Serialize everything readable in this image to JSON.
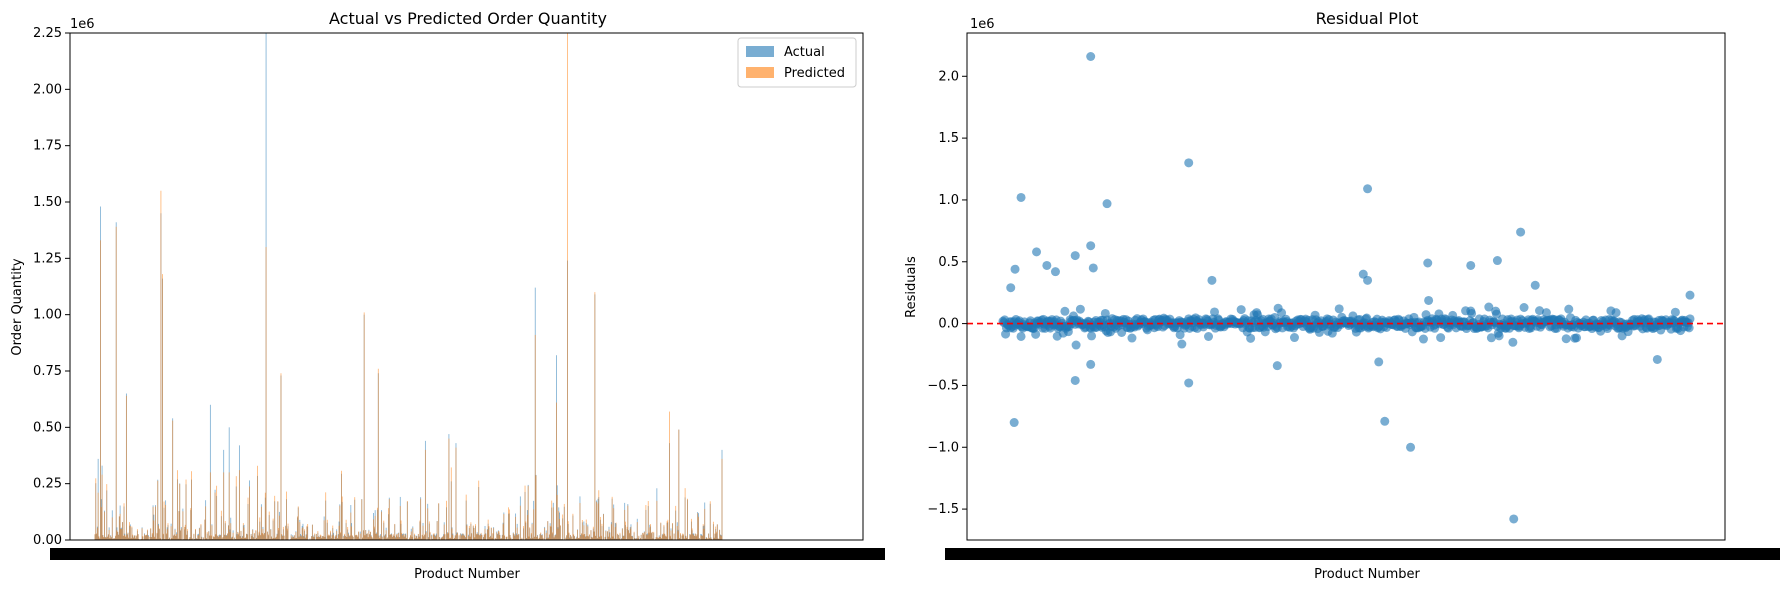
{
  "chart_data": [
    {
      "type": "bar",
      "title": "Actual vs Predicted Order Quantity",
      "xlabel": "Product Number",
      "ylabel": "Order Quantity",
      "y_offset_label": "1e6",
      "ylim": [
        0,
        2.25
      ],
      "y_ticks": [
        "0.00",
        "0.25",
        "0.50",
        "0.75",
        "1.00",
        "1.25",
        "1.50",
        "1.75",
        "2.00",
        "2.25"
      ],
      "legend_position": "top-right",
      "series": [
        {
          "name": "Actual",
          "color": "#1f77b4"
        },
        {
          "name": "Predicted",
          "color": "#ff7f0e"
        }
      ],
      "n_points": 800,
      "spikes": [
        {
          "x": 5,
          "actual": 0.36,
          "predicted": 0.21
        },
        {
          "x": 8,
          "actual": 1.48,
          "predicted": 1.33
        },
        {
          "x": 10,
          "actual": 0.33,
          "predicted": 0.29
        },
        {
          "x": 28,
          "actual": 1.41,
          "predicted": 1.39
        },
        {
          "x": 41,
          "actual": 0.65,
          "predicted": 0.64
        },
        {
          "x": 85,
          "actual": 1.45,
          "predicted": 1.55
        },
        {
          "x": 87,
          "actual": 1.16,
          "predicted": 1.18
        },
        {
          "x": 100,
          "actual": 0.54,
          "predicted": 0.53
        },
        {
          "x": 148,
          "actual": 0.6,
          "predicted": 0.3
        },
        {
          "x": 165,
          "actual": 0.4,
          "predicted": 0.3
        },
        {
          "x": 172,
          "actual": 0.5,
          "predicted": 0.3
        },
        {
          "x": 185,
          "actual": 0.42,
          "predicted": 0.31
        },
        {
          "x": 219,
          "actual": 2.25,
          "predicted": 1.3
        },
        {
          "x": 238,
          "actual": 0.73,
          "predicted": 0.74
        },
        {
          "x": 344,
          "actual": 1.0,
          "predicted": 1.01
        },
        {
          "x": 362,
          "actual": 0.74,
          "predicted": 0.76
        },
        {
          "x": 422,
          "actual": 0.44,
          "predicted": 0.4
        },
        {
          "x": 452,
          "actual": 0.47,
          "predicted": 0.45
        },
        {
          "x": 461,
          "actual": 0.43,
          "predicted": 0.41
        },
        {
          "x": 562,
          "actual": 1.12,
          "predicted": 0.91
        },
        {
          "x": 589,
          "actual": 0.82,
          "predicted": 0.61
        },
        {
          "x": 603,
          "actual": 1.24,
          "predicted": 2.25
        },
        {
          "x": 638,
          "actual": 1.09,
          "predicted": 1.1
        },
        {
          "x": 733,
          "actual": 0.43,
          "predicted": 0.57
        },
        {
          "x": 745,
          "actual": 0.49,
          "predicted": 0.49
        },
        {
          "x": 800,
          "actual": 0.4,
          "predicted": 0.36
        }
      ]
    },
    {
      "type": "scatter",
      "title": "Residual Plot",
      "xlabel": "Product Number",
      "ylabel": "Residuals",
      "y_offset_label": "1e6",
      "ylim": [
        -1.75,
        2.35
      ],
      "y_ticks": [
        "−1.5",
        "−1.0",
        "−0.5",
        "0.0",
        "0.5",
        "1.0",
        "1.5",
        "2.0"
      ],
      "reference_line": {
        "y": 0,
        "color": "#ff0000",
        "style": "dashed"
      },
      "point_color": "#1f77b4",
      "n_points": 800,
      "outliers": [
        {
          "x": 10,
          "y": 0.29
        },
        {
          "x": 14,
          "y": -0.8
        },
        {
          "x": 15,
          "y": 0.44
        },
        {
          "x": 22,
          "y": 1.02
        },
        {
          "x": 40,
          "y": 0.58
        },
        {
          "x": 52,
          "y": 0.47
        },
        {
          "x": 62,
          "y": 0.42
        },
        {
          "x": 85,
          "y": 0.55
        },
        {
          "x": 85,
          "y": -0.46
        },
        {
          "x": 103,
          "y": 2.16
        },
        {
          "x": 103,
          "y": 0.63
        },
        {
          "x": 106,
          "y": 0.45
        },
        {
          "x": 103,
          "y": -0.33
        },
        {
          "x": 122,
          "y": 0.97
        },
        {
          "x": 217,
          "y": 1.3
        },
        {
          "x": 217,
          "y": -0.48
        },
        {
          "x": 244,
          "y": 0.35
        },
        {
          "x": 320,
          "y": -0.34
        },
        {
          "x": 420,
          "y": 0.4
        },
        {
          "x": 425,
          "y": 1.09
        },
        {
          "x": 425,
          "y": 0.35
        },
        {
          "x": 438,
          "y": -0.31
        },
        {
          "x": 445,
          "y": -0.79
        },
        {
          "x": 475,
          "y": -1.0
        },
        {
          "x": 495,
          "y": 0.49
        },
        {
          "x": 545,
          "y": 0.47
        },
        {
          "x": 576,
          "y": 0.51
        },
        {
          "x": 595,
          "y": -1.58
        },
        {
          "x": 603,
          "y": 0.74
        },
        {
          "x": 620,
          "y": 0.31
        },
        {
          "x": 762,
          "y": -0.29
        },
        {
          "x": 800,
          "y": 0.23
        }
      ]
    }
  ]
}
